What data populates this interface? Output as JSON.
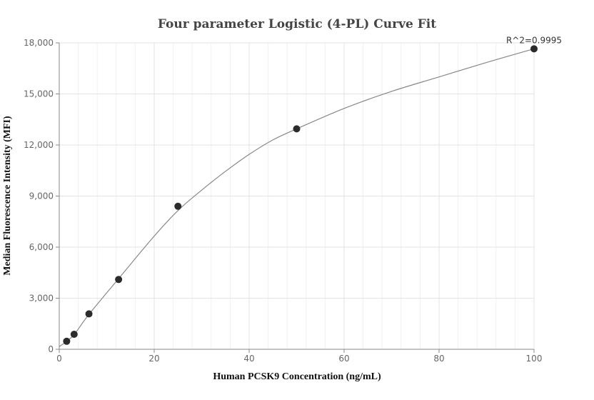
{
  "chart_data": {
    "type": "scatter",
    "title": "Four parameter Logistic (4-PL) Curve Fit",
    "xlabel": "Human PCSK9 Concentration (ng/mL)",
    "ylabel": "Median Fluorescence Intensity (MFI)",
    "xlim": [
      0,
      100
    ],
    "ylim": [
      0,
      18000
    ],
    "x_ticks": [
      0,
      20,
      40,
      60,
      80,
      100
    ],
    "x_tick_labels": [
      "0",
      "20",
      "40",
      "60",
      "80",
      "100"
    ],
    "y_ticks": [
      0,
      3000,
      6000,
      9000,
      12000,
      15000,
      18000
    ],
    "y_tick_labels": [
      "0",
      "3,000",
      "6,000",
      "9,000",
      "12,000",
      "15,000",
      "18,000"
    ],
    "grid": true,
    "points": [
      {
        "x": 1.56,
        "y": 470
      },
      {
        "x": 3.13,
        "y": 880
      },
      {
        "x": 6.25,
        "y": 2080
      },
      {
        "x": 12.5,
        "y": 4100
      },
      {
        "x": 25,
        "y": 8400
      },
      {
        "x": 50,
        "y": 12950
      },
      {
        "x": 100,
        "y": 17650
      }
    ],
    "fit_curve": [
      {
        "x": 0,
        "y": 150
      },
      {
        "x": 1.56,
        "y": 480
      },
      {
        "x": 3.13,
        "y": 860
      },
      {
        "x": 6.25,
        "y": 2050
      },
      {
        "x": 12.5,
        "y": 4150
      },
      {
        "x": 20,
        "y": 6650
      },
      {
        "x": 25,
        "y": 8150
      },
      {
        "x": 30,
        "y": 9350
      },
      {
        "x": 35,
        "y": 10450
      },
      {
        "x": 40,
        "y": 11450
      },
      {
        "x": 45,
        "y": 12300
      },
      {
        "x": 50,
        "y": 12950
      },
      {
        "x": 60,
        "y": 14150
      },
      {
        "x": 70,
        "y": 15150
      },
      {
        "x": 80,
        "y": 16000
      },
      {
        "x": 90,
        "y": 16850
      },
      {
        "x": 100,
        "y": 17650
      }
    ],
    "annotation": "R^2=0.9995"
  }
}
